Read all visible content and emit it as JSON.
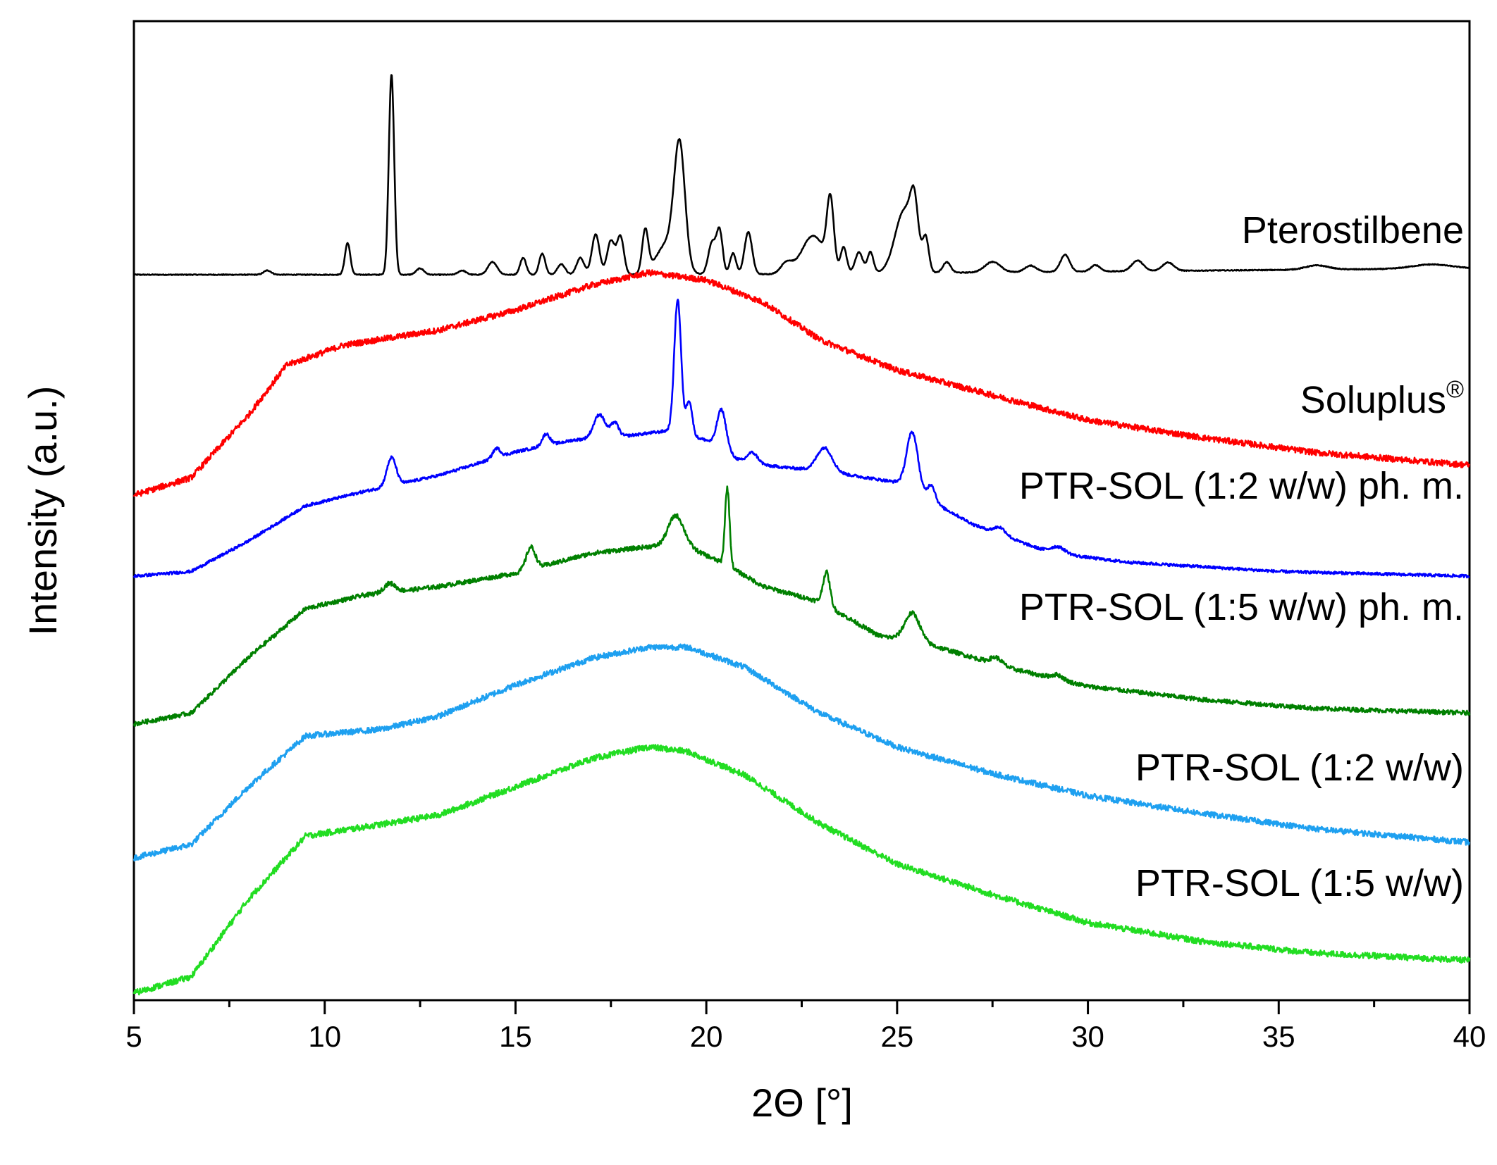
{
  "chart_data": {
    "type": "line",
    "title": "",
    "xlabel": "2Θ [°]",
    "ylabel": "Intensity (a.u.)",
    "xlim": [
      5,
      40
    ],
    "x_ticks": [
      5,
      10,
      15,
      20,
      25,
      30,
      35,
      40
    ],
    "x_tick_labels": [
      "5",
      "10",
      "15",
      "20",
      "25",
      "30",
      "35",
      "40"
    ],
    "y_ticks_shown": false,
    "grid": false,
    "y_units": "arbitrary, stacked/offset traces",
    "series": [
      {
        "name": "Pterostilbene",
        "label": "Pterostilbene",
        "color": "#000000",
        "baseline": [
          [
            5,
            0.0
          ],
          [
            20,
            0.0
          ],
          [
            40,
            0.03
          ]
        ],
        "humps": [],
        "peaks": [
          {
            "x": 8.5,
            "h": 0.02,
            "w": 0.1
          },
          {
            "x": 10.6,
            "h": 0.15,
            "w": 0.07
          },
          {
            "x": 11.75,
            "h": 0.95,
            "w": 0.07
          },
          {
            "x": 12.5,
            "h": 0.03,
            "w": 0.1
          },
          {
            "x": 13.6,
            "h": 0.02,
            "w": 0.1
          },
          {
            "x": 14.4,
            "h": 0.06,
            "w": 0.12
          },
          {
            "x": 15.2,
            "h": 0.08,
            "w": 0.08
          },
          {
            "x": 15.7,
            "h": 0.1,
            "w": 0.08
          },
          {
            "x": 16.2,
            "h": 0.05,
            "w": 0.1
          },
          {
            "x": 16.7,
            "h": 0.08,
            "w": 0.1
          },
          {
            "x": 17.1,
            "h": 0.19,
            "w": 0.1
          },
          {
            "x": 17.5,
            "h": 0.16,
            "w": 0.1
          },
          {
            "x": 17.75,
            "h": 0.18,
            "w": 0.09
          },
          {
            "x": 18.4,
            "h": 0.2,
            "w": 0.08
          },
          {
            "x": 19.3,
            "h": 0.55,
            "w": 0.14
          },
          {
            "x": 19.0,
            "h": 0.15,
            "w": 0.3
          },
          {
            "x": 20.15,
            "h": 0.15,
            "w": 0.1
          },
          {
            "x": 20.35,
            "h": 0.2,
            "w": 0.08
          },
          {
            "x": 20.7,
            "h": 0.1,
            "w": 0.08
          },
          {
            "x": 21.1,
            "h": 0.2,
            "w": 0.1
          },
          {
            "x": 22.1,
            "h": 0.05,
            "w": 0.15
          },
          {
            "x": 22.8,
            "h": 0.18,
            "w": 0.3
          },
          {
            "x": 23.25,
            "h": 0.32,
            "w": 0.09
          },
          {
            "x": 23.6,
            "h": 0.12,
            "w": 0.08
          },
          {
            "x": 24.0,
            "h": 0.1,
            "w": 0.1
          },
          {
            "x": 24.3,
            "h": 0.1,
            "w": 0.08
          },
          {
            "x": 25.2,
            "h": 0.3,
            "w": 0.25
          },
          {
            "x": 25.45,
            "h": 0.22,
            "w": 0.1
          },
          {
            "x": 25.75,
            "h": 0.15,
            "w": 0.08
          },
          {
            "x": 26.3,
            "h": 0.05,
            "w": 0.1
          },
          {
            "x": 27.5,
            "h": 0.05,
            "w": 0.2
          },
          {
            "x": 28.5,
            "h": 0.03,
            "w": 0.15
          },
          {
            "x": 29.4,
            "h": 0.08,
            "w": 0.12
          },
          {
            "x": 30.2,
            "h": 0.03,
            "w": 0.12
          },
          {
            "x": 31.3,
            "h": 0.05,
            "w": 0.15
          },
          {
            "x": 32.1,
            "h": 0.04,
            "w": 0.15
          },
          {
            "x": 36.0,
            "h": 0.02,
            "w": 0.3
          },
          {
            "x": 39.0,
            "h": 0.02,
            "w": 0.5
          }
        ],
        "noise": 0.002
      },
      {
        "name": "Soluplus®",
        "label": "Soluplus",
        "label_sup": "®",
        "color": "#ff0000",
        "baseline": [
          [
            5,
            0.0
          ],
          [
            6.5,
            0.07
          ],
          [
            8.0,
            0.32
          ],
          [
            9.0,
            0.52
          ],
          [
            10.5,
            0.6
          ],
          [
            13.0,
            0.66
          ],
          [
            15.0,
            0.74
          ],
          [
            17.0,
            0.84
          ],
          [
            18.5,
            0.89
          ],
          [
            20.0,
            0.86
          ],
          [
            21.5,
            0.77
          ],
          [
            23.0,
            0.62
          ],
          [
            25.0,
            0.5
          ],
          [
            27.5,
            0.4
          ],
          [
            30.0,
            0.3
          ],
          [
            33.0,
            0.23
          ],
          [
            36.0,
            0.17
          ],
          [
            40.0,
            0.12
          ]
        ],
        "humps": [],
        "peaks": [],
        "noise": 0.012
      },
      {
        "name": "PTR-SOL (1:2 w/w) ph. m.",
        "label": "PTR-SOL (1:2 w/w) ph. m.",
        "color": "#0000ff",
        "baseline": [
          [
            5,
            0.0
          ],
          [
            6.5,
            0.02
          ],
          [
            8.0,
            0.15
          ],
          [
            9.5,
            0.3
          ],
          [
            11.0,
            0.36
          ],
          [
            13.0,
            0.43
          ],
          [
            15.0,
            0.53
          ],
          [
            16.5,
            0.58
          ],
          [
            18.0,
            0.6
          ],
          [
            19.0,
            0.62
          ],
          [
            20.0,
            0.58
          ],
          [
            21.0,
            0.48
          ],
          [
            23.0,
            0.45
          ],
          [
            25.0,
            0.4
          ],
          [
            27.0,
            0.22
          ],
          [
            29.0,
            0.1
          ],
          [
            31.0,
            0.06
          ],
          [
            35.0,
            0.02
          ],
          [
            40.0,
            0.0
          ]
        ],
        "humps": [],
        "peaks": [
          {
            "x": 11.75,
            "h": 0.12,
            "w": 0.12
          },
          {
            "x": 14.5,
            "h": 0.04,
            "w": 0.1
          },
          {
            "x": 15.8,
            "h": 0.05,
            "w": 0.1
          },
          {
            "x": 17.2,
            "h": 0.1,
            "w": 0.15
          },
          {
            "x": 17.6,
            "h": 0.06,
            "w": 0.1
          },
          {
            "x": 19.25,
            "h": 0.57,
            "w": 0.09
          },
          {
            "x": 19.55,
            "h": 0.15,
            "w": 0.08
          },
          {
            "x": 20.4,
            "h": 0.17,
            "w": 0.12
          },
          {
            "x": 21.2,
            "h": 0.05,
            "w": 0.15
          },
          {
            "x": 23.1,
            "h": 0.1,
            "w": 0.2
          },
          {
            "x": 25.4,
            "h": 0.25,
            "w": 0.15
          },
          {
            "x": 25.9,
            "h": 0.07,
            "w": 0.1
          },
          {
            "x": 27.7,
            "h": 0.03,
            "w": 0.15
          },
          {
            "x": 29.2,
            "h": 0.03,
            "w": 0.2
          }
        ],
        "noise": 0.006
      },
      {
        "name": "PTR-SOL (1:5 w/w) ph. m.",
        "label": "PTR-SOL (1:5 w/w) ph. m.",
        "color": "#008000",
        "baseline": [
          [
            5,
            0.0
          ],
          [
            6.5,
            0.05
          ],
          [
            8.0,
            0.3
          ],
          [
            9.5,
            0.52
          ],
          [
            11.0,
            0.58
          ],
          [
            13.0,
            0.62
          ],
          [
            15.0,
            0.68
          ],
          [
            17.0,
            0.77
          ],
          [
            18.5,
            0.8
          ],
          [
            19.5,
            0.8
          ],
          [
            20.5,
            0.72
          ],
          [
            21.5,
            0.62
          ],
          [
            23.0,
            0.55
          ],
          [
            24.5,
            0.4
          ],
          [
            26.0,
            0.35
          ],
          [
            28.0,
            0.25
          ],
          [
            30.0,
            0.17
          ],
          [
            33.0,
            0.11
          ],
          [
            36.0,
            0.07
          ],
          [
            40.0,
            0.05
          ]
        ],
        "humps": [],
        "peaks": [
          {
            "x": 11.7,
            "h": 0.04,
            "w": 0.15
          },
          {
            "x": 15.4,
            "h": 0.1,
            "w": 0.12
          },
          {
            "x": 19.2,
            "h": 0.14,
            "w": 0.2
          },
          {
            "x": 20.55,
            "h": 0.35,
            "w": 0.06
          },
          {
            "x": 23.15,
            "h": 0.15,
            "w": 0.09
          },
          {
            "x": 25.4,
            "h": 0.13,
            "w": 0.2
          },
          {
            "x": 27.6,
            "h": 0.03,
            "w": 0.15
          },
          {
            "x": 29.2,
            "h": 0.02,
            "w": 0.15
          }
        ],
        "noise": 0.01
      },
      {
        "name": "PTR-SOL (1:2 w/w)",
        "label": "PTR-SOL (1:2 w/w)",
        "color": "#1ea0f0",
        "baseline": [
          [
            5,
            0.0
          ],
          [
            6.5,
            0.06
          ],
          [
            8.0,
            0.32
          ],
          [
            9.5,
            0.55
          ],
          [
            11.5,
            0.58
          ],
          [
            13.0,
            0.64
          ],
          [
            15.0,
            0.78
          ],
          [
            17.0,
            0.9
          ],
          [
            18.5,
            0.95
          ],
          [
            19.5,
            0.95
          ],
          [
            21.0,
            0.86
          ],
          [
            23.0,
            0.65
          ],
          [
            25.0,
            0.5
          ],
          [
            27.5,
            0.38
          ],
          [
            30.0,
            0.28
          ],
          [
            33.0,
            0.2
          ],
          [
            36.0,
            0.13
          ],
          [
            40.0,
            0.07
          ]
        ],
        "humps": [],
        "peaks": [],
        "noise": 0.013
      },
      {
        "name": "PTR-SOL (1:5 w/w)",
        "label": "PTR-SOL (1:5 w/w)",
        "color": "#22dd22",
        "baseline": [
          [
            5,
            0.0
          ],
          [
            6.5,
            0.07
          ],
          [
            8.0,
            0.4
          ],
          [
            9.5,
            0.67
          ],
          [
            11.5,
            0.72
          ],
          [
            13.0,
            0.76
          ],
          [
            15.0,
            0.88
          ],
          [
            17.0,
            1.0
          ],
          [
            18.5,
            1.05
          ],
          [
            19.5,
            1.03
          ],
          [
            21.0,
            0.93
          ],
          [
            23.0,
            0.72
          ],
          [
            25.0,
            0.55
          ],
          [
            27.5,
            0.42
          ],
          [
            30.0,
            0.3
          ],
          [
            33.0,
            0.22
          ],
          [
            36.0,
            0.17
          ],
          [
            40.0,
            0.14
          ]
        ],
        "humps": [],
        "peaks": [],
        "noise": 0.013
      }
    ]
  }
}
